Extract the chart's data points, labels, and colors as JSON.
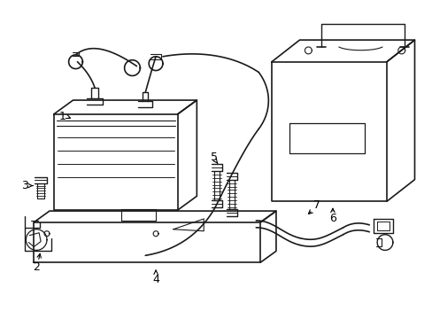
{
  "background_color": "#ffffff",
  "line_color": "#1a1a1a",
  "lw": 1.2,
  "figsize": [
    4.89,
    3.6
  ],
  "dpi": 100
}
